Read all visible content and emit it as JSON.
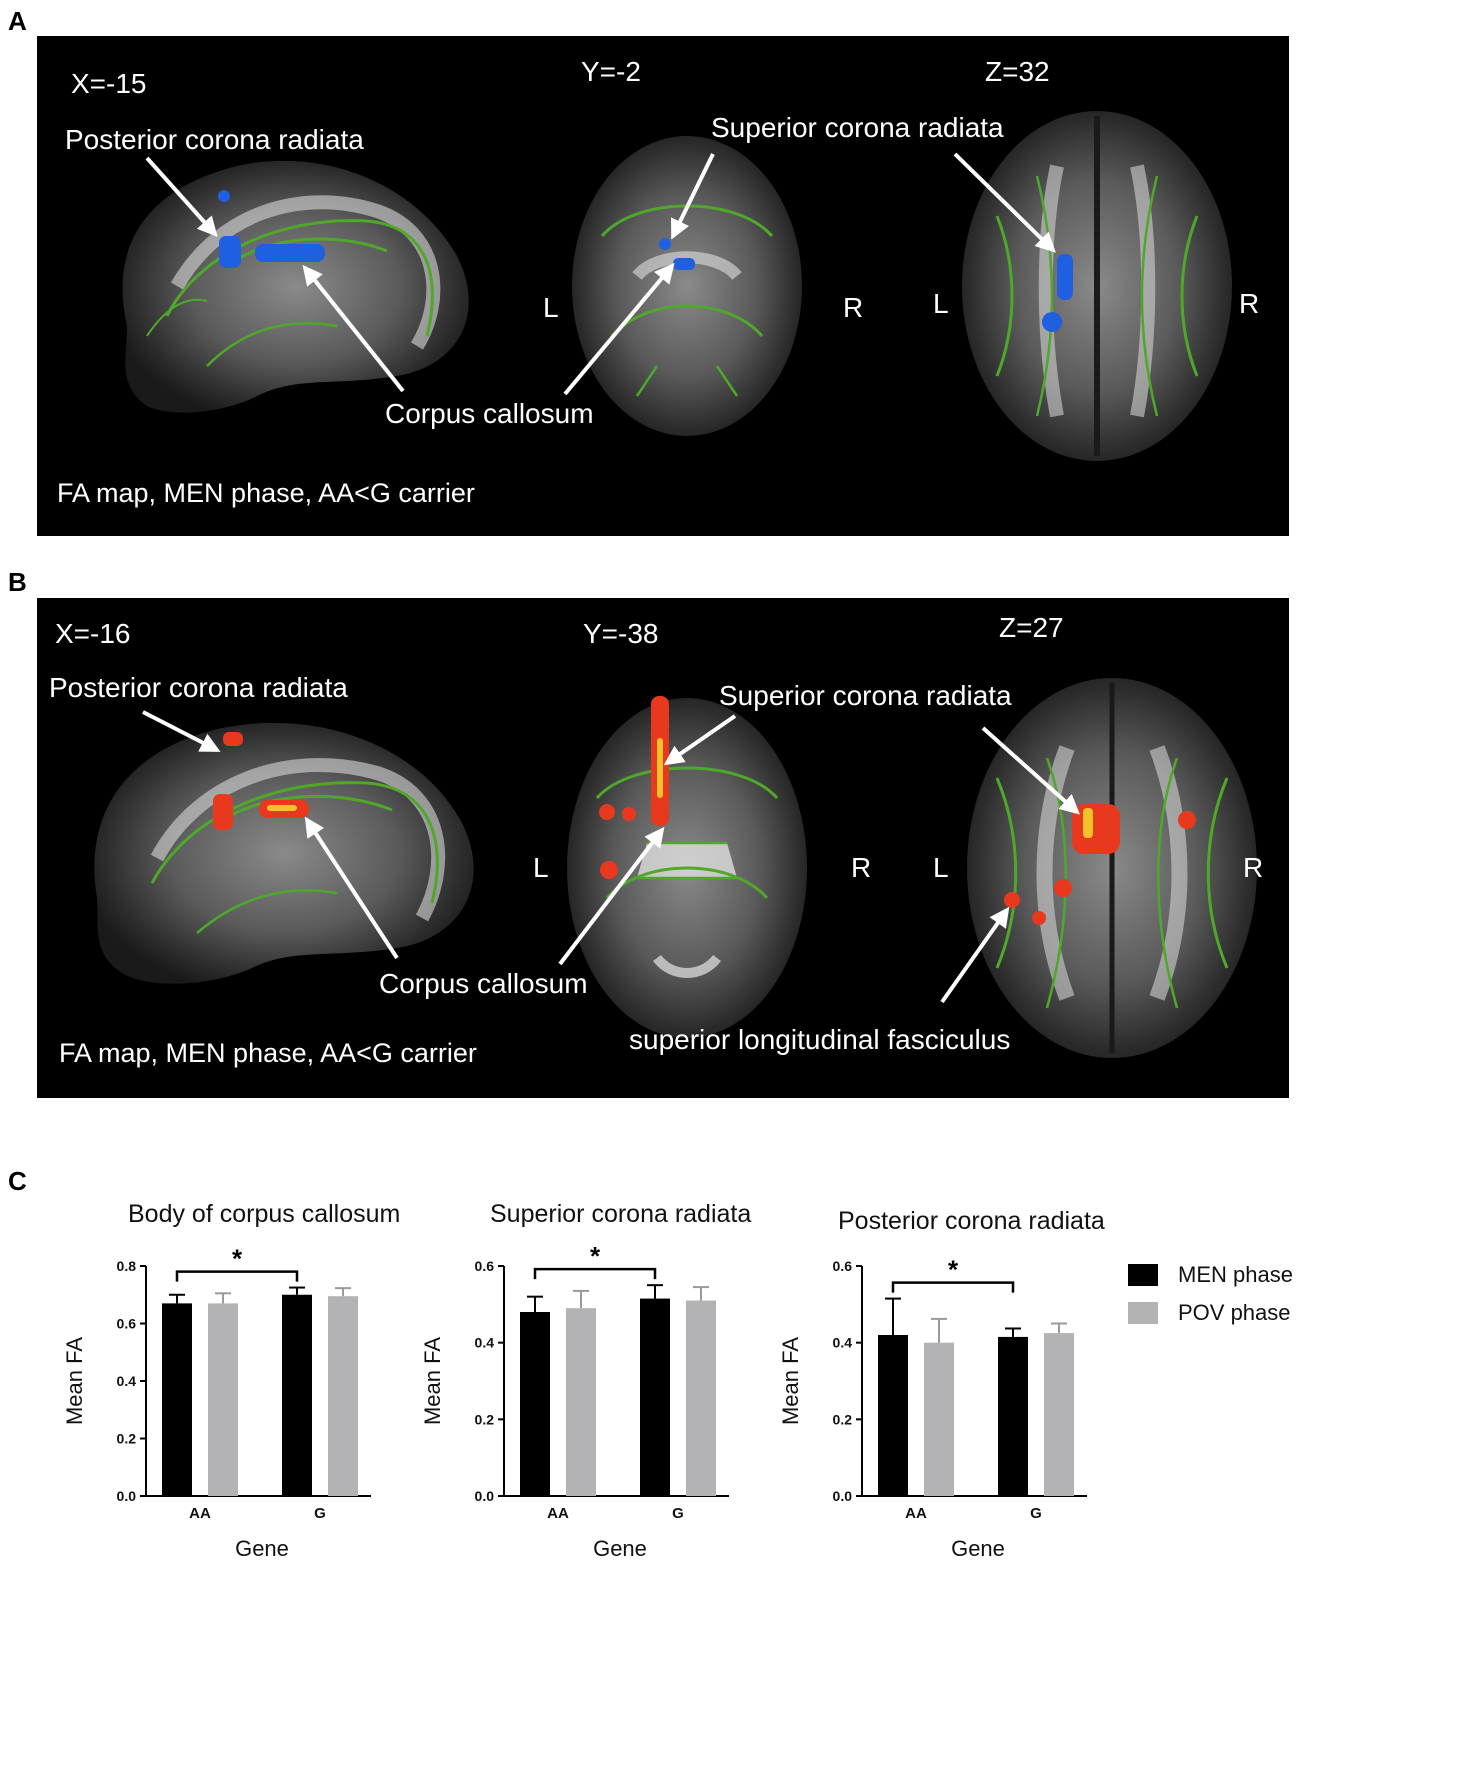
{
  "panel_a": {
    "letter": "A",
    "coords": [
      "X=-15",
      "Y=-2",
      "Z=32"
    ],
    "labels": {
      "posterior": "Posterior corona radiata",
      "superior": "Superior corona radiata",
      "corpus": "Corpus callosum",
      "left": "L",
      "right": "R",
      "left2": "L",
      "right2": "R"
    },
    "caption": "FA map, MEN phase, AA<G carrier",
    "cluster_color": "#1f5fe0"
  },
  "panel_b": {
    "letter": "B",
    "coords": [
      "X=-16",
      "Y=-38",
      "Z=27"
    ],
    "labels": {
      "posterior": "Posterior corona radiata",
      "superior": "Superior corona radiata",
      "corpus": "Corpus callosum",
      "slf": "superior longitudinal fasciculus",
      "left": "L",
      "right": "R",
      "left2": "L",
      "right2": "R"
    },
    "caption": "FA map, MEN phase, AA<G carrier",
    "cluster_color": "#e8391e"
  },
  "panel_c": {
    "letter": "C",
    "legend": [
      {
        "label": "MEN phase",
        "color": "#000000"
      },
      {
        "label": "POV phase",
        "color": "#b3b3b5"
      }
    ],
    "significance_marker": "*"
  },
  "colors": {
    "skeleton": "#4fa82a",
    "background": "#000000"
  },
  "chart_data": [
    {
      "type": "bar",
      "title": "Body of corpus callosum",
      "xlabel": "Gene",
      "ylabel": "Mean FA",
      "categories": [
        "AA",
        "G"
      ],
      "ylim": [
        0,
        0.8
      ],
      "yticks": [
        "0.0",
        "0.2",
        "0.4",
        "0.6",
        "0.8"
      ],
      "series": [
        {
          "name": "MEN phase",
          "values": [
            0.67,
            0.7
          ],
          "errors": [
            0.03,
            0.025
          ]
        },
        {
          "name": "POV phase",
          "values": [
            0.67,
            0.695
          ],
          "errors": [
            0.035,
            0.028
          ]
        }
      ],
      "significance": {
        "label": "*",
        "between": [
          "AA MEN phase",
          "G MEN phase"
        ]
      }
    },
    {
      "type": "bar",
      "title": "Superior corona radiata",
      "xlabel": "Gene",
      "ylabel": "Mean FA",
      "categories": [
        "AA",
        "G"
      ],
      "ylim": [
        0,
        0.6
      ],
      "yticks": [
        "0.0",
        "0.2",
        "0.4",
        "0.6"
      ],
      "series": [
        {
          "name": "MEN phase",
          "values": [
            0.48,
            0.515
          ],
          "errors": [
            0.04,
            0.035
          ]
        },
        {
          "name": "POV phase",
          "values": [
            0.49,
            0.51
          ],
          "errors": [
            0.045,
            0.035
          ]
        }
      ],
      "significance": {
        "label": "*",
        "between": [
          "AA MEN phase",
          "G MEN phase"
        ]
      }
    },
    {
      "type": "bar",
      "title": "Posterior corona radiata",
      "xlabel": "Gene",
      "ylabel": "Mean FA",
      "categories": [
        "AA",
        "G"
      ],
      "ylim": [
        0,
        0.6
      ],
      "yticks": [
        "0.0",
        "0.2",
        "0.4",
        "0.6"
      ],
      "series": [
        {
          "name": "MEN phase",
          "values": [
            0.42,
            0.415
          ],
          "errors": [
            0.095,
            0.022
          ]
        },
        {
          "name": "POV phase",
          "values": [
            0.4,
            0.425
          ],
          "errors": [
            0.062,
            0.025
          ]
        }
      ],
      "significance": {
        "label": "*",
        "between": [
          "AA MEN phase",
          "G MEN phase"
        ]
      }
    }
  ]
}
